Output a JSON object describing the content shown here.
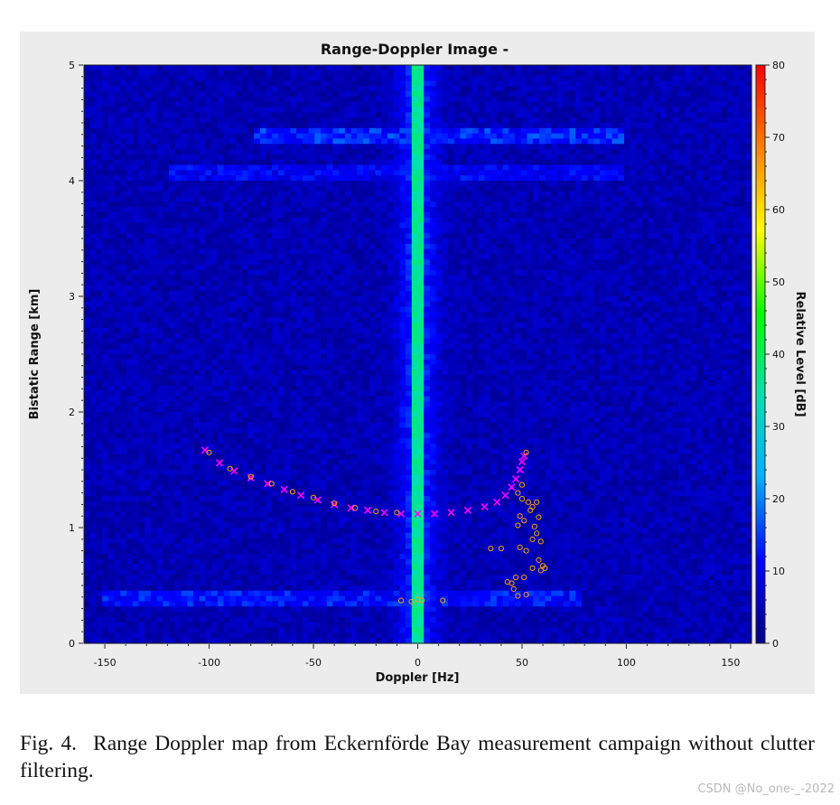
{
  "chart_data": {
    "type": "heatmap",
    "title": "Range-Doppler Image -",
    "xlabel": "Doppler [Hz]",
    "ylabel": "Bistatic Range [km]",
    "xlim": [
      -160,
      160
    ],
    "ylim": [
      0,
      5
    ],
    "xticks": [
      -150,
      -100,
      -50,
      0,
      50,
      100,
      150
    ],
    "yticks": [
      0,
      1,
      2,
      3,
      4,
      5
    ],
    "colorbar": {
      "label": "Relative Level [dB]",
      "range": [
        0,
        80
      ],
      "ticks": [
        0,
        10,
        20,
        30,
        40,
        50,
        60,
        70,
        80
      ],
      "colormap": [
        "#00008b",
        "#0000ff",
        "#00b0ff",
        "#00e0b0",
        "#00ff00",
        "#ffff00",
        "#ff8000",
        "#ff0000"
      ]
    },
    "background_level_db": 4,
    "zero_doppler_ridge_db": 45,
    "horizontal_bands": [
      {
        "range_km": 4.4,
        "level_db": 18,
        "doppler_extent": [
          -80,
          100
        ]
      },
      {
        "range_km": 4.07,
        "level_db": 14,
        "doppler_extent": [
          -120,
          100
        ]
      },
      {
        "range_km": 0.4,
        "level_db": 16,
        "doppler_extent": [
          -150,
          80
        ]
      }
    ],
    "series": [
      {
        "marker": "x",
        "color": "#ff00ff",
        "points": [
          [
            -102,
            1.67
          ],
          [
            -95,
            1.56
          ],
          [
            -88,
            1.49
          ],
          [
            -80,
            1.43
          ],
          [
            -72,
            1.38
          ],
          [
            -64,
            1.33
          ],
          [
            -56,
            1.28
          ],
          [
            -48,
            1.24
          ],
          [
            -40,
            1.2
          ],
          [
            -32,
            1.17
          ],
          [
            -24,
            1.15
          ],
          [
            -16,
            1.13
          ],
          [
            -8,
            1.12
          ],
          [
            0,
            1.12
          ],
          [
            8,
            1.12
          ],
          [
            16,
            1.13
          ],
          [
            24,
            1.15
          ],
          [
            32,
            1.18
          ],
          [
            38,
            1.22
          ],
          [
            42,
            1.28
          ],
          [
            45,
            1.35
          ],
          [
            47,
            1.42
          ],
          [
            49,
            1.5
          ],
          [
            50,
            1.57
          ],
          [
            51,
            1.62
          ]
        ]
      },
      {
        "marker": "o",
        "color": "#ffa500",
        "points": [
          [
            -100,
            1.65
          ],
          [
            -90,
            1.51
          ],
          [
            -80,
            1.44
          ],
          [
            -70,
            1.38
          ],
          [
            -60,
            1.31
          ],
          [
            -50,
            1.26
          ],
          [
            -40,
            1.21
          ],
          [
            -30,
            1.17
          ],
          [
            -20,
            1.14
          ],
          [
            -10,
            1.13
          ],
          [
            -8,
            0.37
          ],
          [
            -3,
            0.36
          ],
          [
            0,
            0.38
          ],
          [
            2,
            0.37
          ],
          [
            12,
            0.37
          ],
          [
            35,
            0.82
          ],
          [
            40,
            0.82
          ],
          [
            43,
            0.53
          ],
          [
            45,
            0.52
          ],
          [
            46,
            0.47
          ],
          [
            47,
            0.57
          ],
          [
            48,
            0.41
          ],
          [
            48,
            1.02
          ],
          [
            48,
            1.3
          ],
          [
            49,
            0.83
          ],
          [
            49,
            1.1
          ],
          [
            50,
            1.25
          ],
          [
            50,
            1.37
          ],
          [
            51,
            0.57
          ],
          [
            51,
            1.06
          ],
          [
            52,
            0.42
          ],
          [
            52,
            0.8
          ],
          [
            52,
            1.65
          ],
          [
            53,
            1.22
          ],
          [
            54,
            1.15
          ],
          [
            55,
            0.65
          ],
          [
            55,
            0.9
          ],
          [
            55,
            1.18
          ],
          [
            56,
            1.01
          ],
          [
            57,
            0.95
          ],
          [
            57,
            1.22
          ],
          [
            58,
            0.72
          ],
          [
            58,
            1.09
          ],
          [
            59,
            0.88
          ],
          [
            59,
            0.63
          ],
          [
            60,
            0.67
          ],
          [
            61,
            0.65
          ]
        ]
      }
    ]
  },
  "caption": {
    "label": "Fig. 4.",
    "text": "Range Doppler map from Eckernförde Bay measurement campaign without clutter filtering."
  },
  "watermark": "CSDN @No_one-_-2022"
}
